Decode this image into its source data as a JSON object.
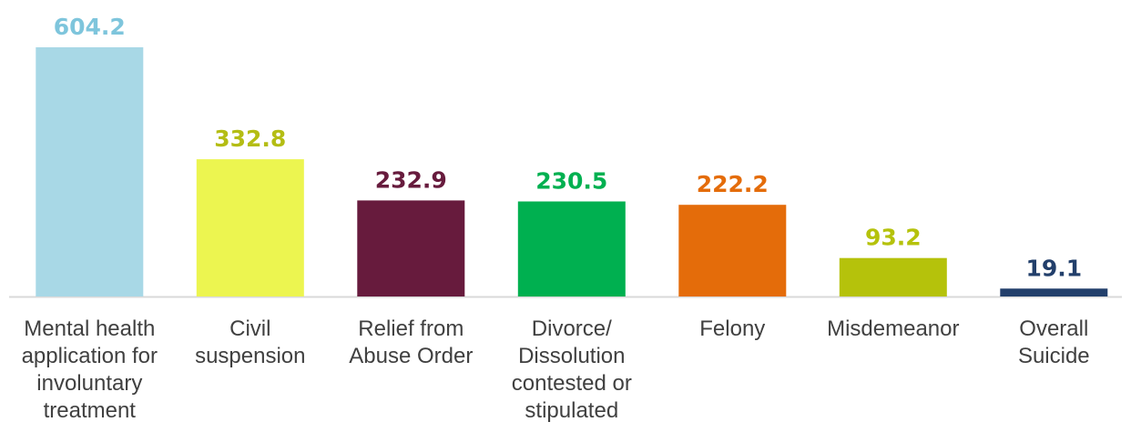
{
  "chart_data": {
    "type": "bar",
    "title": "",
    "xlabel": "",
    "ylabel": "",
    "ylim": [
      0,
      640
    ],
    "grid": false,
    "legend": "none",
    "categories": [
      "Mental health application for involuntary treatment",
      "Civil suspension",
      "Relief from Abuse Order",
      "Divorce/ Dissolution contested or stipulated",
      "Felony",
      "Misdemeanor",
      "Overall Suicide"
    ],
    "category_lines": [
      [
        "Mental health",
        "application for",
        "involuntary",
        "treatment"
      ],
      [
        "Civil",
        "suspension"
      ],
      [
        "Relief from",
        "Abuse Order"
      ],
      [
        "Divorce/",
        "Dissolution",
        "contested or",
        "stipulated"
      ],
      [
        "Felony"
      ],
      [
        "Misdemeanor"
      ],
      [
        "Overall",
        "Suicide"
      ]
    ],
    "values": [
      604.2,
      332.8,
      232.9,
      230.5,
      222.2,
      93.2,
      19.1
    ],
    "value_labels": [
      "604.2",
      "332.8",
      "232.9",
      "230.5",
      "222.2",
      "93.2",
      "19.1"
    ],
    "bar_colors": [
      "#a8d8e6",
      "#ecf550",
      "#671b3d",
      "#00b050",
      "#e46c0a",
      "#b5c20b",
      "#223f6b"
    ],
    "label_colors": [
      "#7ec5dc",
      "#b4bd14",
      "#671b3d",
      "#00b050",
      "#e46c0a",
      "#b5c20b",
      "#223f6b"
    ],
    "axis_color": "#d9d9d9"
  }
}
